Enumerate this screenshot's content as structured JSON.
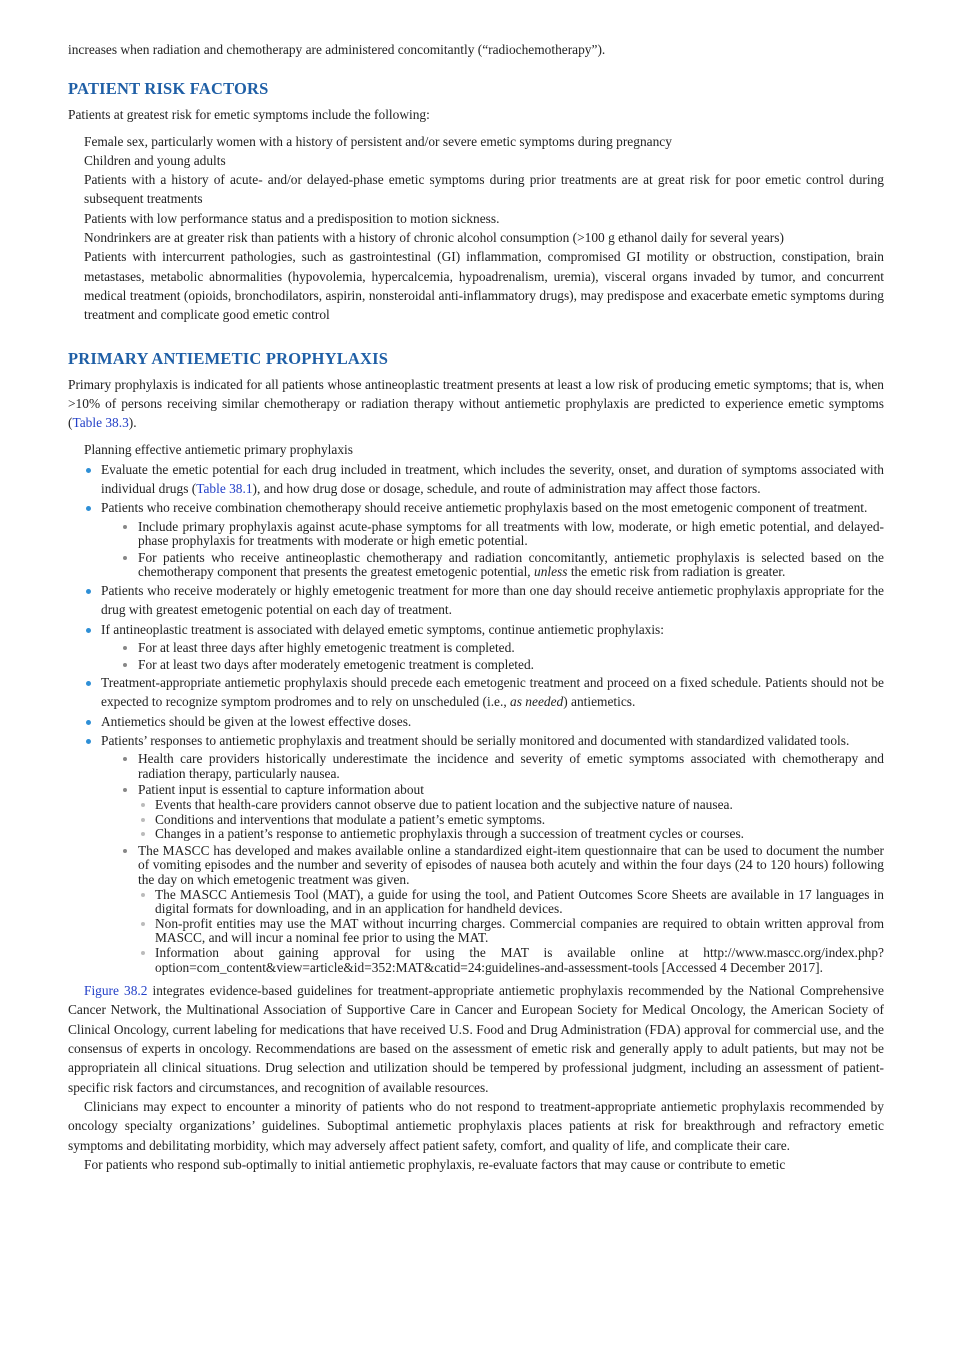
{
  "intro": "increases when radiation and chemotherapy are administered concomitantly (“radiochemotherapy”).",
  "risk_factors": {
    "heading": "PATIENT RISK FACTORS",
    "lead": "Patients at greatest risk for emetic symptoms include the following:",
    "items": [
      "Female sex, particularly women with a history of persistent and/or severe emetic symptoms during pregnancy",
      "Children and young adults",
      "Patients with a history of acute- and/or delayed-phase emetic symptoms during prior treatments are at great risk for poor emetic control during subsequent treatments",
      "Patients with low performance status and a predisposition to motion sickness.",
      "Nondrinkers are at greater risk than patients with a history of chronic alcohol consumption (>100 g ethanol daily for several years)",
      "Patients with intercurrent pathologies, such as gastrointestinal (GI) inflammation, compromised GI motility or obstruction, constipation, brain metastases, metabolic abnormalities (hypovolemia, hypercalcemia, hypoadrenalism, uremia), visceral organs invaded by tumor, and concurrent medical treatment (opioids, bronchodilators, aspirin, nonsteroidal anti-inflammatory drugs), may predispose and exacerbate emetic symptoms during treatment and complicate good emetic control"
    ]
  },
  "prophylaxis": {
    "heading": "PRIMARY ANTIEMETIC PROPHYLAXIS",
    "intro": [
      "Primary prophylaxis is indicated for all patients whose antineoplastic treatment presents at least a low risk of producing emetic symptoms; that is, when >10% of persons receiving similar chemotherapy or radiation therapy without antiemetic prophylaxis are predicted to experience emetic symptoms (",
      {
        "text": "Table 38.3",
        "style": "link"
      },
      ")."
    ],
    "list_title": "Planning effective antiemetic primary prophylaxis",
    "bullets": [
      {
        "text": [
          "Evaluate the emetic potential for each drug included in treatment, which includes the severity, onset, and duration of symptoms associated with individual drugs (",
          {
            "text": "Table 38.1",
            "style": "link"
          },
          "), and how drug dose or dosage, schedule, and route of administration may affect those factors."
        ]
      },
      {
        "text": [
          "Patients who receive combination chemotherapy should receive antiemetic prophylaxis based on the most emetogenic component of treatment."
        ],
        "children": [
          {
            "text": [
              "Include primary prophylaxis against acute-phase symptoms for all treatments with low, moderate, or high emetic potential, and delayed-phase prophylaxis for treatments with moderate or high emetic potential."
            ]
          },
          {
            "text": [
              "For patients who receive antineoplastic chemotherapy and radiation concomitantly, antiemetic prophylaxis is selected based on the chemotherapy component that presents the greatest emetogenic potential, ",
              {
                "text": "unless",
                "style": "italic"
              },
              " the emetic risk from radiation is greater."
            ]
          }
        ]
      },
      {
        "text": [
          "Patients who receive moderately or highly emetogenic treatment for more than one day should receive antiemetic prophylaxis appropriate for the drug with greatest emetogenic potential on each day of treatment."
        ]
      },
      {
        "text": [
          "If antineoplastic treatment is associated with delayed emetic symptoms, continue antiemetic prophylaxis:"
        ],
        "children": [
          {
            "text": [
              "For at least three days after highly emetogenic treatment is completed."
            ]
          },
          {
            "text": [
              "For at least two days after moderately emetogenic treatment is completed."
            ]
          }
        ]
      },
      {
        "text": [
          "Treatment-appropriate antiemetic prophylaxis should precede each emetogenic treatment and proceed on a fixed schedule. Patients should not be expected to recognize symptom prodromes and to rely on unscheduled (i.e., ",
          {
            "text": "as needed",
            "style": "italic"
          },
          ") antiemetics."
        ]
      },
      {
        "text": [
          "Antiemetics should be given at the lowest effective doses."
        ]
      },
      {
        "text": [
          "Patients’ responses to antiemetic prophylaxis and treatment should be serially monitored and documented with standardized validated tools."
        ],
        "children": [
          {
            "text": [
              "Health care providers historically underestimate the incidence and severity of emetic symptoms associated with chemotherapy and radiation therapy, particularly nausea."
            ]
          },
          {
            "text": [
              "Patient input is essential to capture information about"
            ],
            "children": [
              {
                "text": [
                  "Events that health-care providers cannot observe due to patient location and the subjective nature of nausea."
                ]
              },
              {
                "text": [
                  "Conditions and interventions that modulate a patient’s emetic symptoms."
                ]
              },
              {
                "text": [
                  "Changes in a patient’s response to antiemetic prophylaxis through a succession of treatment cycles or courses."
                ]
              }
            ]
          },
          {
            "text": [
              "The MASCC has developed and makes available online a standardized eight-item questionnaire that can be used to document the number of vomiting episodes and the number and severity of episodes of nausea both acutely and within the four days (24 to 120 hours) following the day on which emetogenic treatment was given."
            ],
            "children": [
              {
                "text": [
                  "The MASCC Antiemesis Tool (MAT), a guide for using the tool, and Patient Outcomes Score Sheets are available in 17 languages in digital formats for downloading, and in an application for handheld devices."
                ]
              },
              {
                "text": [
                  "Non-profit entities may use the MAT without incurring charges. Commercial companies are required to obtain written approval from MASCC, and will incur a nominal fee prior to using the MAT."
                ]
              },
              {
                "text": [
                  "Information about gaining approval for using the MAT is available online at http://www.mascc.org/index.php?option=com_content&view=article&id=352:MAT&catid=24:guidelines-and-assessment-tools [Accessed 4 December 2017]."
                ]
              }
            ]
          }
        ]
      }
    ],
    "paragraphs": [
      [
        {
          "text": "Figure 38.2",
          "style": "link"
        },
        " integrates evidence-based guidelines for treatment-appropriate antiemetic prophylaxis recommended by the National Comprehensive Cancer Network, the Multinational Association of Supportive Care in Cancer and European Society for Medical Oncology, the American Society of Clinical Oncology, current labeling for medications that have received U.S. Food and Drug Administration (FDA) approval for commercial use, and the consensus of experts in oncology. Recommendations are based on the assessment of emetic risk and generally apply to adult patients, but may not be appropriatein all clinical situations. Drug selection and utilization should be tempered by professional judgment, including an assessment of patient-specific risk factors and circumstances, and recognition of available resources."
      ],
      [
        "Clinicians may expect to encounter a minority of patients who do not respond to treatment-appropriate antiemetic prophylaxis recommended by oncology specialty organizations’ guidelines. Suboptimal antiemetic prophylaxis places patients at risk for breakthrough and refractory emetic symptoms and debilitating morbidity, which may adversely affect patient safety, comfort, and quality of life, and complicate their care."
      ],
      [
        "For patients who respond sub-optimally to initial antiemetic prophylaxis, re-evaluate factors that may cause or contribute to emetic"
      ]
    ]
  }
}
